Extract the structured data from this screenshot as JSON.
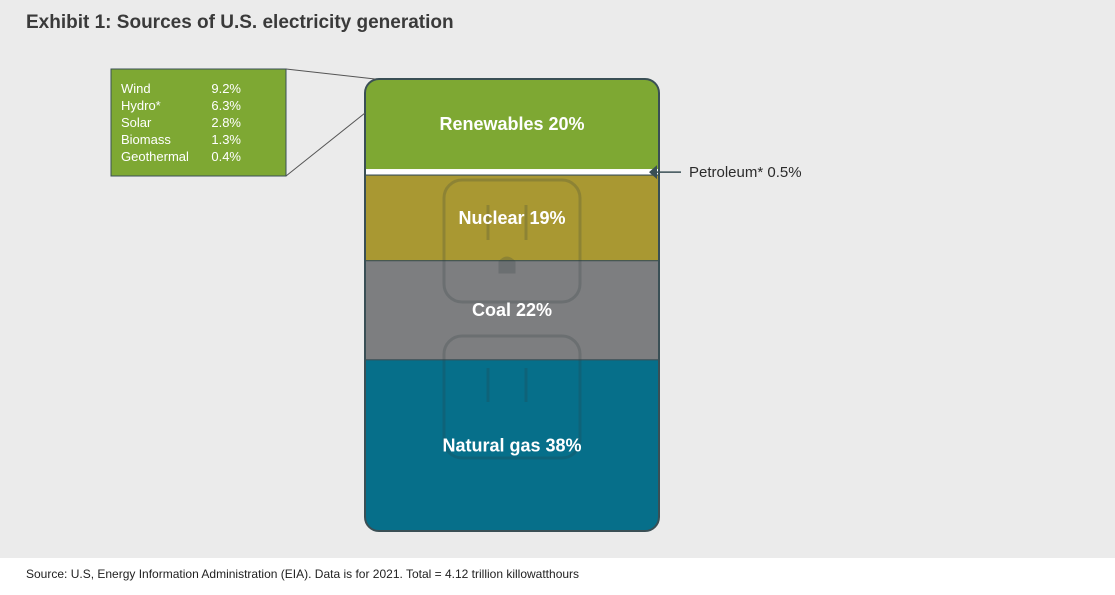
{
  "title": "Exhibit 1: Sources of U.S. electricity generation",
  "source": "Source: U.S, Energy Information Administration (EIA). Data is for 2021. Total = 4.12 trillion killowatthours",
  "colors": {
    "renewables": "#7ea833",
    "nuclear": "#a99832",
    "coal": "#7d7e80",
    "natural_gas": "#066f8a",
    "border": "#3a4f55"
  },
  "chart_data": {
    "type": "bar",
    "stacked": true,
    "unit": "%",
    "segments": [
      {
        "label": "Renewables 20%",
        "value": 20,
        "color": "#7ea833"
      },
      {
        "label": "Petroleum* 0.5%",
        "value": 0.5,
        "color": "#ffffff"
      },
      {
        "label": "Nuclear 19%",
        "value": 19,
        "color": "#a99832"
      },
      {
        "label": "Coal 22%",
        "value": 22,
        "color": "#7d7e80"
      },
      {
        "label": "Natural gas 38%",
        "value": 38,
        "color": "#066f8a"
      }
    ],
    "renewables_breakdown": [
      {
        "name": "Wind",
        "value_label": "9.2%",
        "value": 9.2
      },
      {
        "name": "Hydro*",
        "value_label": "6.3%",
        "value": 6.3
      },
      {
        "name": "Solar",
        "value_label": "2.8%",
        "value": 2.8
      },
      {
        "name": "Biomass",
        "value_label": "1.3%",
        "value": 1.3
      },
      {
        "name": "Geothermal",
        "value_label": "0.4%",
        "value": 0.4
      }
    ]
  }
}
